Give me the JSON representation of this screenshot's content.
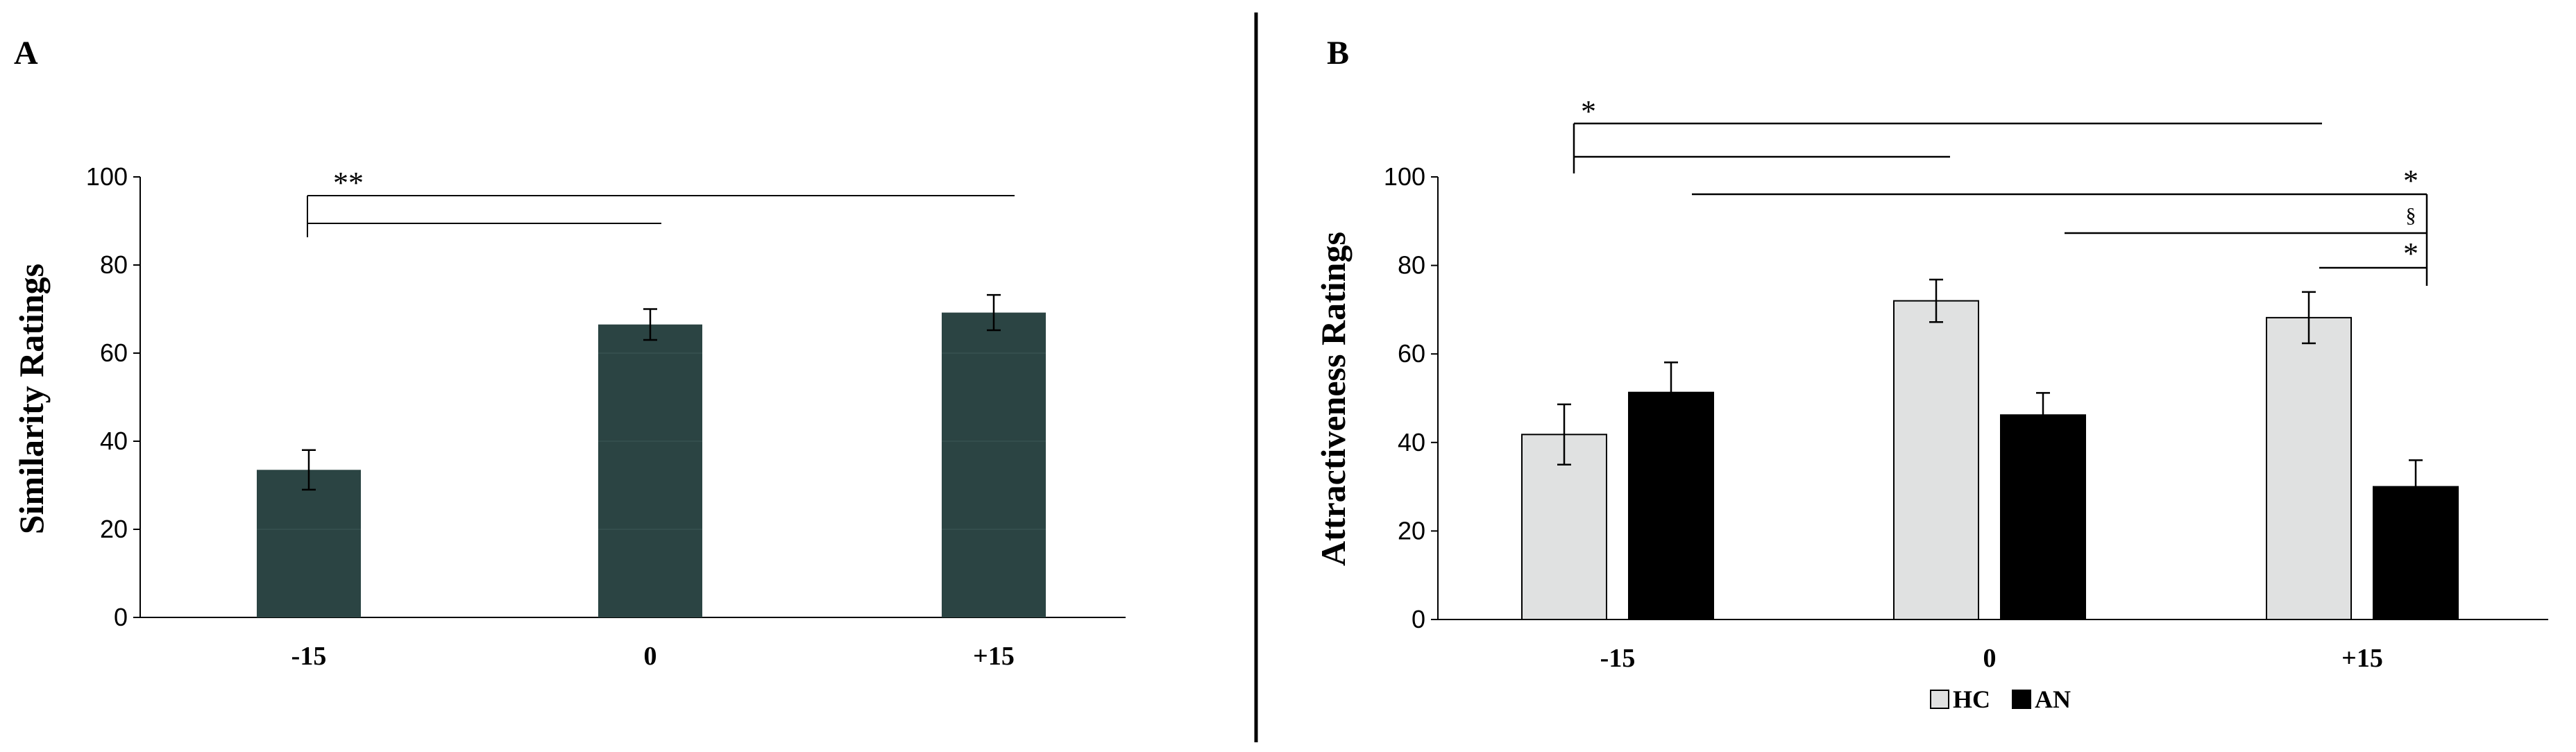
{
  "panels": {
    "a": {
      "letter": "A"
    },
    "b": {
      "letter": "B"
    }
  },
  "chart_data": [
    {
      "type": "bar",
      "panel": "A",
      "title": "",
      "xlabel": "",
      "ylabel": "Similarity Ratings",
      "ylim": [
        0,
        100
      ],
      "yticks": [
        0,
        20,
        40,
        60,
        80,
        100
      ],
      "categories": [
        "-15",
        "0",
        "+15"
      ],
      "series": [
        {
          "name": "",
          "color": "#2b4443",
          "values": [
            33.5,
            66.5,
            69.2
          ],
          "errors": [
            4.5,
            3.5,
            4.0
          ]
        }
      ],
      "significance": [
        {
          "label": "**",
          "from": "-15",
          "to": "0"
        },
        {
          "label": "**",
          "from": "-15",
          "to": "+15"
        }
      ]
    },
    {
      "type": "bar",
      "panel": "B",
      "title": "",
      "xlabel": "",
      "ylabel": "Attractiveness Ratings",
      "ylim": [
        0,
        100
      ],
      "yticks": [
        0,
        20,
        40,
        60,
        80,
        100
      ],
      "categories": [
        "-15",
        "0",
        "+15"
      ],
      "series": [
        {
          "name": "HC",
          "color": "#e0e1e1",
          "values": [
            41.8,
            72.0,
            68.2
          ],
          "errors": [
            6.8,
            4.8,
            5.8
          ]
        },
        {
          "name": "AN",
          "color": "#000000",
          "values": [
            51.3,
            46.2,
            30.0
          ],
          "errors": [
            6.8,
            5.0,
            6.0
          ]
        }
      ],
      "significance": [
        {
          "label": "*",
          "from": "-15 HC",
          "to": "+15 HC"
        },
        {
          "label": "*",
          "from": "-15 HC",
          "to": "0 HC"
        },
        {
          "label": "*",
          "from": "-15 AN",
          "to": "+15 AN"
        },
        {
          "label": "§",
          "from": "0 AN",
          "to": "+15 AN"
        },
        {
          "label": "*",
          "from": "+15 HC",
          "to": "+15 AN"
        }
      ],
      "legend": {
        "position": "bottom-center",
        "entries": [
          "HC",
          "AN"
        ]
      }
    }
  ]
}
